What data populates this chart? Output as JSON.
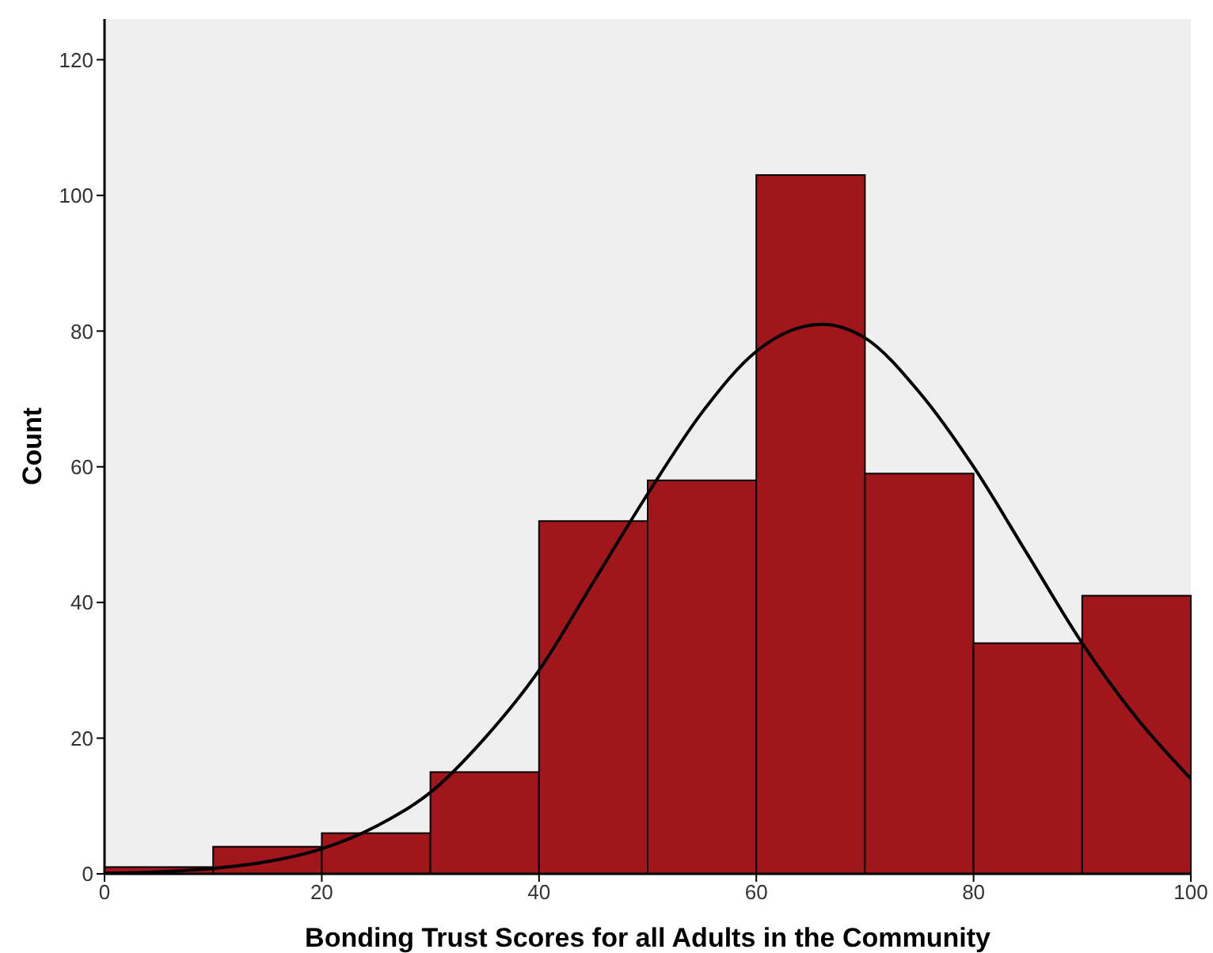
{
  "chart_data": {
    "type": "histogram",
    "xlabel": "Bonding Trust Scores for all Adults in the Community",
    "ylabel": "Count",
    "bins": [
      0,
      10,
      20,
      30,
      40,
      50,
      60,
      70,
      80,
      90,
      100
    ],
    "values": [
      1,
      4,
      6,
      15,
      52,
      58,
      103,
      59,
      34,
      41
    ],
    "color": "#a0161b",
    "xlim": [
      0,
      100
    ],
    "xticks": [
      0,
      20,
      40,
      60,
      80,
      100
    ],
    "ylim": [
      0,
      126
    ],
    "yticks": [
      0,
      20,
      40,
      60,
      80,
      100,
      120
    ],
    "series": [
      {
        "type": "line",
        "color": "#000000",
        "x": [
          0,
          5,
          10,
          15,
          20,
          25,
          30,
          35,
          40,
          45,
          50,
          55,
          60,
          66,
          70,
          75,
          80,
          85,
          90,
          95,
          100
        ],
        "values": [
          0.1,
          0.3,
          0.8,
          1.8,
          3.7,
          7,
          12,
          20,
          30,
          43,
          56,
          68,
          77,
          81,
          79,
          71,
          60,
          47,
          34,
          23,
          14
        ]
      }
    ]
  }
}
